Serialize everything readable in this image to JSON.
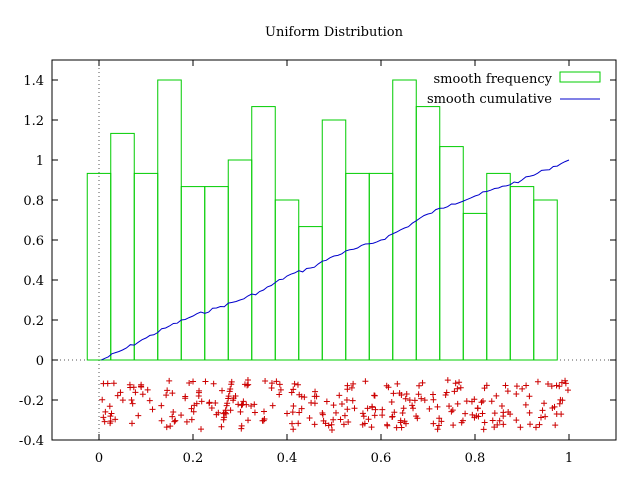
{
  "chart_data": {
    "type": "bar",
    "title": "Uniform Distribution",
    "xlabel": "",
    "ylabel": "",
    "xlim": [
      -0.1,
      1.1
    ],
    "ylim": [
      -0.4,
      1.5
    ],
    "x_ticks": [
      "0",
      "0.2",
      "0.4",
      "0.6",
      "0.8",
      "1"
    ],
    "x_tick_values": [
      0,
      0.2,
      0.4,
      0.6,
      0.8,
      1
    ],
    "y_ticks": [
      "-0.4",
      "-0.2",
      "0",
      "0.2",
      "0.4",
      "0.6",
      "0.8",
      "1",
      "1.2",
      "1.4"
    ],
    "y_tick_values": [
      -0.4,
      -0.2,
      0,
      0.2,
      0.4,
      0.6,
      0.8,
      1,
      1.2,
      1.4
    ],
    "grid": false,
    "legend_position": "top-right",
    "series": [
      {
        "name": "smooth frequency",
        "type": "histogram",
        "color": "#00cc00",
        "bin_width": 0.05,
        "bin_centers": [
          0.0,
          0.05,
          0.1,
          0.15,
          0.2,
          0.25,
          0.3,
          0.35,
          0.4,
          0.45,
          0.5,
          0.55,
          0.6,
          0.65,
          0.7,
          0.75,
          0.8,
          0.85,
          0.9,
          0.95
        ],
        "values": [
          0.933,
          1.133,
          0.933,
          1.4,
          0.867,
          0.867,
          1.0,
          1.267,
          0.8,
          0.667,
          1.2,
          0.933,
          0.933,
          1.4,
          1.267,
          1.067,
          0.733,
          0.933,
          0.867,
          0.8
        ]
      },
      {
        "name": "smooth cumulative",
        "type": "line",
        "color": "#0000cc",
        "x": [
          0.005,
          0.05,
          0.1,
          0.15,
          0.2,
          0.25,
          0.3,
          0.35,
          0.4,
          0.45,
          0.5,
          0.55,
          0.6,
          0.65,
          0.7,
          0.75,
          0.8,
          0.85,
          0.9,
          0.95,
          1.0
        ],
        "y": [
          0.0,
          0.05,
          0.11,
          0.17,
          0.22,
          0.26,
          0.3,
          0.35,
          0.42,
          0.46,
          0.52,
          0.56,
          0.6,
          0.66,
          0.73,
          0.78,
          0.82,
          0.86,
          0.9,
          0.95,
          1.0
        ]
      },
      {
        "name": "",
        "type": "scatter",
        "color": "#cc0000",
        "marker": "+",
        "count": 300,
        "x_range": [
          0.0,
          1.0
        ],
        "y_range": [
          -0.35,
          -0.1
        ]
      }
    ]
  }
}
